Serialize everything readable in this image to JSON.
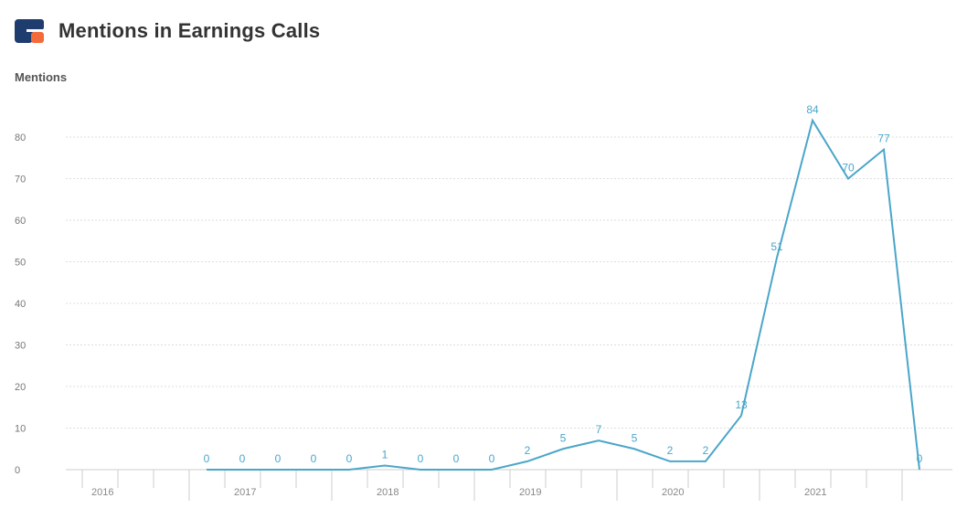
{
  "header": {
    "title": "Mentions in Earnings Calls",
    "logo_icon": "brand-logo-icon"
  },
  "colors": {
    "line": "#4aa6c9",
    "logo_dark": "#1f3c6e",
    "logo_accent": "#f26b38"
  },
  "chart_data": {
    "type": "line",
    "title": "Mentions in Earnings Calls",
    "xlabel": "",
    "ylabel": "Mentions",
    "ylim": [
      0,
      80
    ],
    "yticks": [
      0,
      10,
      20,
      30,
      40,
      50,
      60,
      70,
      80
    ],
    "xticks": [
      "2016",
      "2017",
      "2018",
      "2019",
      "2020",
      "2021"
    ],
    "grid": true,
    "legend": "none",
    "x": [
      "2016-Q4",
      "2017-Q1",
      "2017-Q2",
      "2017-Q3",
      "2017-Q4",
      "2018-Q1",
      "2018-Q2",
      "2018-Q3",
      "2018-Q4",
      "2019-Q1",
      "2019-Q2",
      "2019-Q3",
      "2019-Q4",
      "2020-Q1",
      "2020-Q2",
      "2020-Q3",
      "2020-Q4",
      "2021-Q1",
      "2021-Q2",
      "2021-Q3",
      "2021-Q4"
    ],
    "series": [
      {
        "values": [
          0,
          0,
          0,
          0,
          0,
          1,
          0,
          0,
          0,
          2,
          5,
          7,
          5,
          2,
          2,
          13,
          51,
          84,
          70,
          77,
          0
        ]
      }
    ]
  }
}
